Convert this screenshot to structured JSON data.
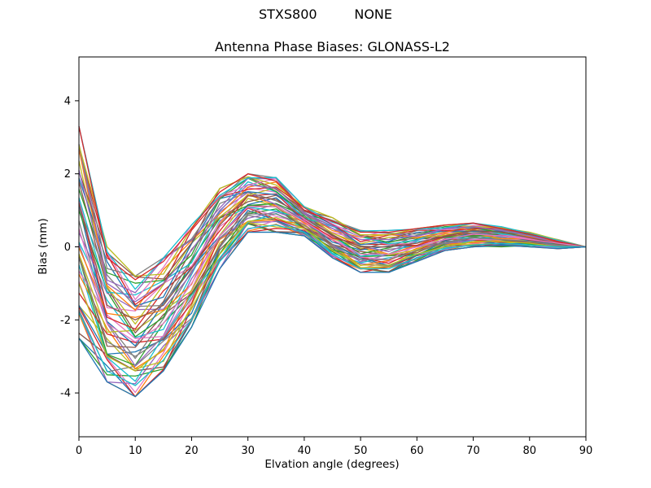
{
  "figure": {
    "suptitle": "STXS800         NONE"
  },
  "chart_data": {
    "type": "line",
    "title": "Antenna Phase Biases: GLONASS-L2",
    "xlabel": "Elvation angle (degrees)",
    "ylabel": "Bias (mm)",
    "xlim": [
      0,
      90
    ],
    "ylim": [
      -5.2,
      5.2
    ],
    "xticks": [
      0,
      10,
      20,
      30,
      40,
      50,
      60,
      70,
      80,
      90
    ],
    "yticks": [
      -4,
      -2,
      0,
      2,
      4
    ],
    "grid": false,
    "legend": "none",
    "x": [
      0,
      5,
      10,
      15,
      20,
      25,
      30,
      35,
      40,
      45,
      50,
      55,
      60,
      65,
      70,
      75,
      80,
      85,
      90
    ],
    "num_series": 40,
    "envelope": {
      "lower": [
        -2.5,
        -3.7,
        -4.1,
        -3.4,
        -2.2,
        -0.6,
        0.4,
        0.4,
        0.3,
        -0.3,
        -0.7,
        -0.7,
        -0.4,
        -0.1,
        0.0,
        0.0,
        0.0,
        -0.05,
        0.0
      ],
      "upper": [
        3.3,
        0.0,
        -0.8,
        -0.3,
        0.6,
        1.6,
        2.0,
        1.9,
        1.1,
        0.8,
        0.45,
        0.45,
        0.5,
        0.6,
        0.65,
        0.55,
        0.4,
        0.2,
        0.0
      ]
    },
    "series": [
      {
        "values": [
          3.3,
          -0.3,
          -0.9,
          -0.4,
          0.5,
          1.5,
          2.0,
          1.8,
          1.0,
          0.7,
          0.4,
          0.4,
          0.5,
          0.6,
          0.65,
          0.5,
          0.35,
          0.15,
          0.0
        ]
      },
      {
        "values": [
          2.1,
          -1.0,
          -1.5,
          -1.0,
          -0.1,
          1.0,
          1.7,
          1.6,
          0.9,
          0.5,
          0.2,
          0.2,
          0.3,
          0.5,
          0.55,
          0.45,
          0.3,
          0.1,
          0.0
        ]
      },
      {
        "values": [
          1.2,
          -1.6,
          -2.0,
          -1.6,
          -0.6,
          0.6,
          1.4,
          1.3,
          0.8,
          0.3,
          0.0,
          0.0,
          0.1,
          0.3,
          0.45,
          0.4,
          0.25,
          0.1,
          0.0
        ]
      },
      {
        "values": [
          0.5,
          -2.1,
          -2.6,
          -2.1,
          -1.0,
          0.3,
          1.1,
          1.1,
          0.7,
          0.2,
          -0.2,
          -0.2,
          0.0,
          0.2,
          0.35,
          0.3,
          0.2,
          0.1,
          0.0
        ]
      },
      {
        "values": [
          -0.3,
          -2.6,
          -3.0,
          -2.5,
          -1.4,
          0.0,
          0.9,
          0.9,
          0.6,
          0.0,
          -0.35,
          -0.35,
          -0.1,
          0.1,
          0.25,
          0.2,
          0.15,
          0.05,
          0.0
        ]
      },
      {
        "values": [
          -1.0,
          -3.0,
          -3.4,
          -2.8,
          -1.7,
          -0.2,
          0.7,
          0.8,
          0.5,
          -0.1,
          -0.5,
          -0.5,
          -0.2,
          0.0,
          0.15,
          0.15,
          0.1,
          0.0,
          0.0
        ]
      },
      {
        "values": [
          -1.8,
          -3.4,
          -3.8,
          -3.1,
          -2.0,
          -0.4,
          0.5,
          0.6,
          0.4,
          -0.2,
          -0.6,
          -0.6,
          -0.3,
          -0.05,
          0.05,
          0.1,
          0.05,
          0.0,
          0.0
        ]
      },
      {
        "values": [
          -2.5,
          -3.7,
          -4.1,
          -3.4,
          -2.2,
          -0.6,
          0.4,
          0.4,
          0.3,
          -0.3,
          -0.7,
          -0.7,
          -0.4,
          -0.1,
          0.0,
          0.05,
          0.0,
          -0.05,
          0.0
        ]
      }
    ],
    "colors": [
      "#1f77b4",
      "#ff7f0e",
      "#2ca02c",
      "#d62728",
      "#9467bd",
      "#8c564b",
      "#e377c2",
      "#7f7f7f",
      "#bcbd22",
      "#17becf"
    ],
    "render_hints": {
      "jitter_amp": 0.12,
      "jitter_f1": 2.3,
      "jitter_f2": 1.7,
      "line_width": 1.3
    }
  }
}
